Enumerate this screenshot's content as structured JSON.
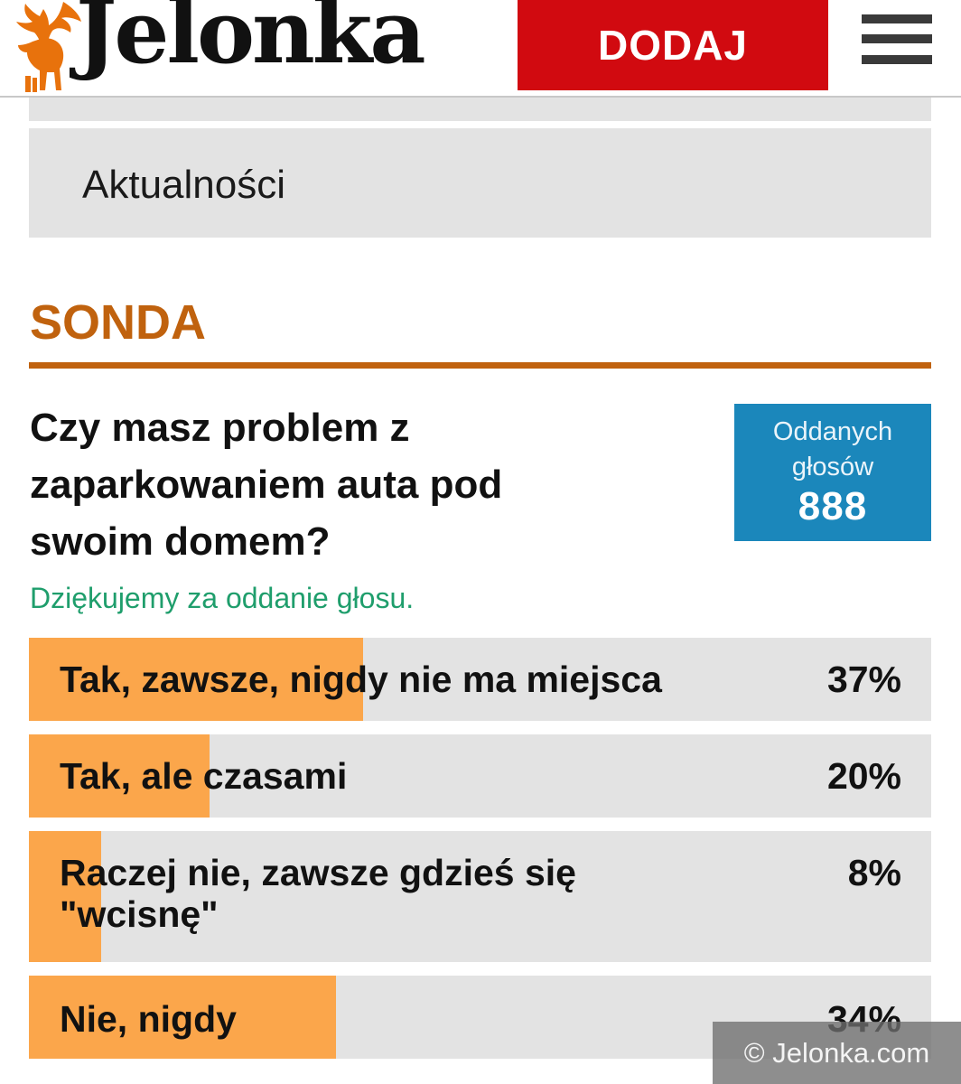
{
  "header": {
    "logo_text": "Jelonka",
    "add_button_label": "DODAJ",
    "brand_color": "#d10a10"
  },
  "menu": {
    "current_item": "Aktualności"
  },
  "poll": {
    "section_title": "SONDA",
    "question": "Czy masz problem z zaparkowaniem auta pod swoim domem?",
    "votes_label": "Oddanych głosów",
    "votes_count": "888",
    "thanks_message": "Dziękujemy za oddanie głosu.",
    "answers": [
      {
        "label": "Tak, zawsze, nigdy nie ma miejsca",
        "percent_label": "37%",
        "percent": 37
      },
      {
        "label": "Tak, ale czasami",
        "percent_label": "20%",
        "percent": 20
      },
      {
        "label": "Raczej nie, zawsze gdzieś się \"wcisnę\"",
        "percent_label": "8%",
        "percent": 8
      },
      {
        "label": "Nie, nigdy",
        "percent_label": "34%",
        "percent": 34
      }
    ]
  },
  "watermark": "© Jelonka.com",
  "colors": {
    "accent": "#c0620e",
    "votes_box": "#1b87bb",
    "bar_fill": "#fba64b",
    "thanks": "#1f9e6c"
  }
}
